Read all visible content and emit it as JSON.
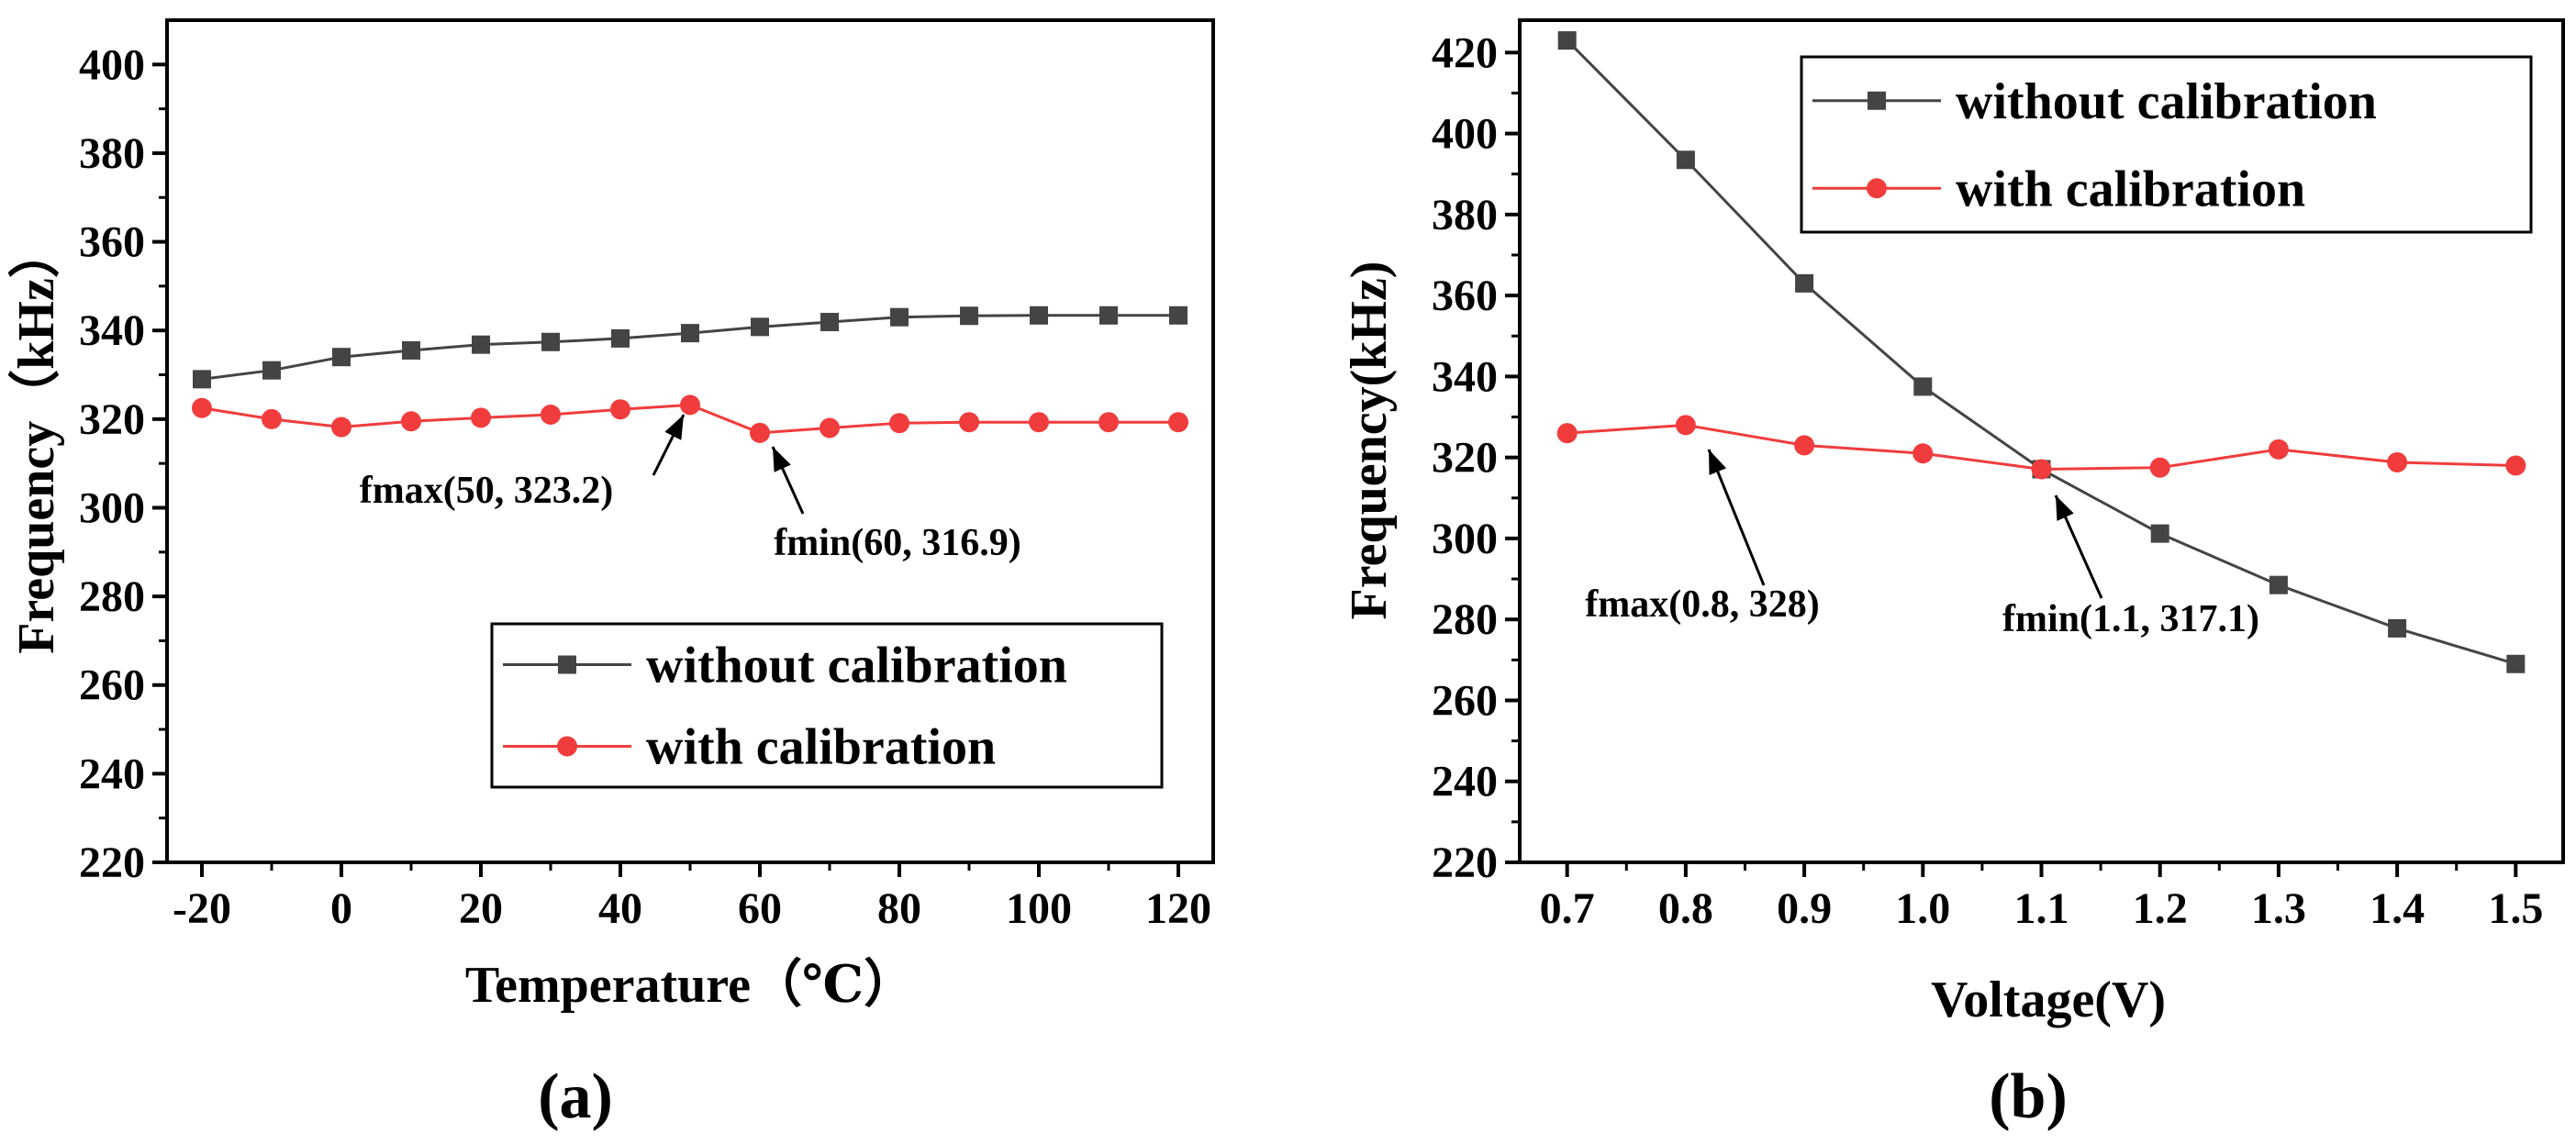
{
  "chart_data": [
    {
      "type": "line",
      "panel_label": "(a)",
      "xlabel": "Temperature（℃）",
      "ylabel": "Frequency（kHz）",
      "x": [
        -20,
        -10,
        0,
        10,
        20,
        30,
        40,
        50,
        60,
        70,
        80,
        90,
        100,
        110,
        120
      ],
      "xlim": [
        -25,
        125
      ],
      "ylim": [
        220,
        410
      ],
      "xticks": [
        -20,
        0,
        20,
        40,
        60,
        80,
        100,
        120
      ],
      "yticks": [
        220,
        240,
        260,
        280,
        300,
        320,
        340,
        360,
        380,
        400
      ],
      "legend": "bottom-right",
      "series": [
        {
          "name": "without calibration",
          "marker": "square",
          "color": "#444444",
          "values": [
            329,
            331,
            334,
            335.5,
            336.8,
            337.4,
            338.2,
            339.4,
            340.8,
            341.9,
            343.0,
            343.3,
            343.4,
            343.4,
            343.4
          ]
        },
        {
          "name": "with calibration",
          "marker": "circle",
          "color": "#f03c3c",
          "values": [
            322.5,
            320.0,
            318.2,
            319.5,
            320.3,
            321.0,
            322.2,
            323.2,
            316.9,
            318.0,
            319.1,
            319.3,
            319.3,
            319.3,
            319.3
          ]
        }
      ],
      "annotations": [
        {
          "text": "fmax(50, 323.2)",
          "x": 50,
          "y": 323.2
        },
        {
          "text": "fmin(60, 316.9)",
          "x": 60,
          "y": 316.9
        }
      ]
    },
    {
      "type": "line",
      "panel_label": "(b)",
      "xlabel": "Voltage(V)",
      "ylabel": "Frequency(kHz)",
      "x": [
        0.7,
        0.8,
        0.9,
        1.0,
        1.1,
        1.2,
        1.3,
        1.4,
        1.5
      ],
      "xlim": [
        0.66,
        1.54
      ],
      "ylim": [
        220,
        428
      ],
      "xticks": [
        0.7,
        0.8,
        0.9,
        1.0,
        1.1,
        1.2,
        1.3,
        1.4,
        1.5
      ],
      "yticks": [
        220,
        240,
        260,
        280,
        300,
        320,
        340,
        360,
        380,
        400,
        420
      ],
      "legend": "top-right",
      "series": [
        {
          "name": "without calibration",
          "marker": "square",
          "color": "#444444",
          "values": [
            423,
            393.5,
            363,
            337.5,
            317.1,
            301.2,
            288.5,
            277.8,
            269.0
          ]
        },
        {
          "name": "with calibration",
          "marker": "circle",
          "color": "#f03c3c",
          "values": [
            326.0,
            328.0,
            323.0,
            321.0,
            317.1,
            317.5,
            322.0,
            318.8,
            318.0
          ]
        }
      ],
      "annotations": [
        {
          "text": "fmax(0.8, 328)",
          "x": 0.8,
          "y": 328
        },
        {
          "text": "fmin(1.1, 317.1)",
          "x": 1.1,
          "y": 317.1
        }
      ]
    }
  ]
}
